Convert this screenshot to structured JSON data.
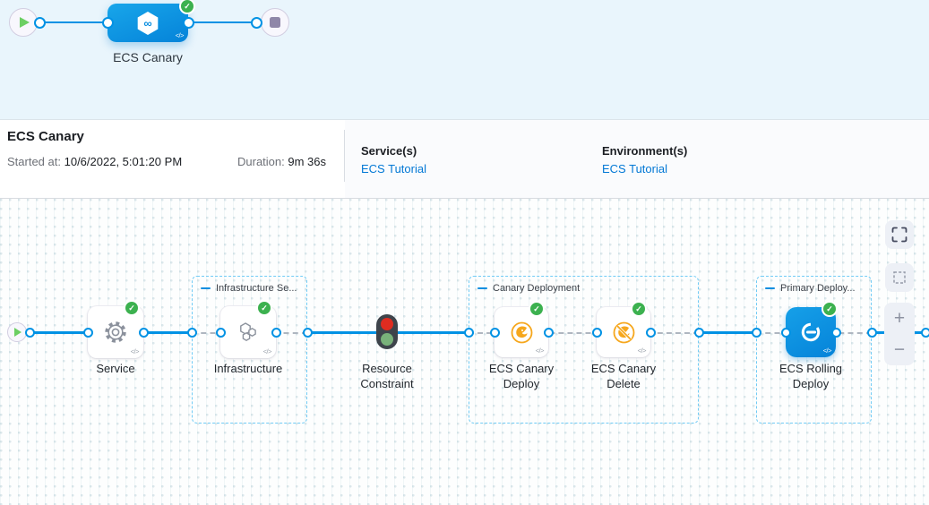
{
  "glyphs": {
    "check": "✓",
    "code": "</>",
    "infinity": "∞"
  },
  "colors": {
    "primary_blue": "#0092e4",
    "node_blue": "#0b90e2",
    "success_green": "#3cb14f",
    "link_blue": "#0278d5",
    "canary_amber": "#f6a71d",
    "banner_bg": "#e9f5fc"
  },
  "stage_graph": {
    "stage_label": "ECS Canary"
  },
  "summary": {
    "title": "ECS Canary",
    "started_label": "Started at:",
    "started_value": "10/6/2022, 5:01:20 PM",
    "duration_label": "Duration:",
    "duration_value": "9m 36s",
    "services_label": "Service(s)",
    "services_link": "ECS Tutorial",
    "environments_label": "Environment(s)",
    "environments_link": "ECS Tutorial"
  },
  "execution": {
    "groups": [
      {
        "label": "Infrastructure Se..."
      },
      {
        "label": "Canary Deployment"
      },
      {
        "label": "Primary Deploy..."
      }
    ],
    "nodes": {
      "service": {
        "label": "Service"
      },
      "infrastructure": {
        "label": "Infrastructure"
      },
      "resource_constraint": {
        "label": "Resource Constraint"
      },
      "ecs_canary_deploy": {
        "label": "ECS Canary Deploy"
      },
      "ecs_canary_delete": {
        "label": "ECS Canary Delete"
      },
      "ecs_rolling_deploy": {
        "label": "ECS Rolling Deploy"
      }
    }
  },
  "controls": {
    "zoom_in": "+",
    "zoom_out": "−"
  }
}
